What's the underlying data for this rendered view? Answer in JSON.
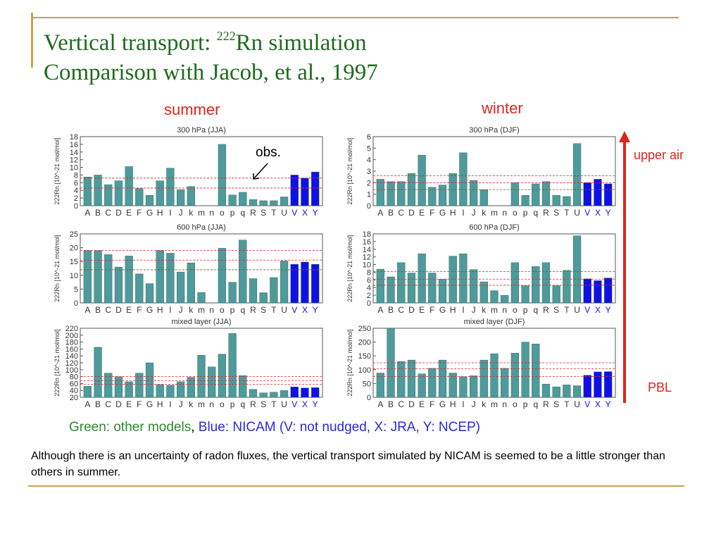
{
  "title": {
    "line1_prefix": "Vertical transport: ",
    "line1_sup": "222",
    "line1_suffix": "Rn simulation",
    "line2": "Comparison with Jacob, et al., 1997"
  },
  "labels": {
    "summer": "summer",
    "winter": "winter",
    "upper_air": "upper air",
    "pbl": "PBL",
    "obs": "obs."
  },
  "legend": {
    "green_text": "Green: other models",
    "separator": ", ",
    "blue_text": "Blue: NICAM (V: not nudged, X: JRA, Y: NCEP)"
  },
  "note": "Although there is an uncertainty of radon fluxes, the vertical transport simulated by NICAM is seemed to be a little stronger than others in summer.",
  "colors": {
    "title": "#1f6a1f",
    "red": "#e0241b",
    "other_models": "#4f9a9a",
    "nicam": "#1010e6",
    "legend_green": "#2c8a2c",
    "legend_blue": "#2a2ad8",
    "gold": "#c8a24a"
  },
  "chart_data": [
    {
      "type": "bar",
      "title": "300 hPa (JJA)",
      "ylabel": "222Rn [10^-21 mol/mol]",
      "ylim": [
        0,
        18
      ],
      "yticks": [
        0,
        2,
        4,
        6,
        8,
        10,
        12,
        14,
        16,
        18
      ],
      "categories": [
        "A",
        "B",
        "C",
        "D",
        "E",
        "F",
        "G",
        "H",
        "I",
        "J",
        "k",
        "m",
        "n",
        "o",
        "p",
        "q",
        "R",
        "S",
        "T",
        "U",
        "V",
        "X",
        "Y"
      ],
      "values": [
        7.5,
        8.0,
        5.5,
        6.5,
        10.2,
        4.5,
        2.7,
        6.5,
        9.8,
        4.2,
        5.0,
        0,
        0,
        16.0,
        2.8,
        3.5,
        1.6,
        1.3,
        1.3,
        2.3,
        8.0,
        7.2,
        8.8
      ],
      "nicam_categories": [
        "V",
        "X",
        "Y"
      ],
      "obs_lines": [
        7.2,
        4.6
      ]
    },
    {
      "type": "bar",
      "title": "300 hPa (DJF)",
      "ylabel": "222Rn [10^-21 mol/mol]",
      "ylim": [
        0,
        6
      ],
      "yticks": [
        0,
        1,
        2,
        3,
        4,
        5,
        6
      ],
      "categories": [
        "A",
        "B",
        "C",
        "D",
        "E",
        "F",
        "G",
        "H",
        "I",
        "J",
        "k",
        "m",
        "n",
        "o",
        "p",
        "q",
        "R",
        "S",
        "T",
        "U",
        "V",
        "X",
        "Y"
      ],
      "values": [
        2.3,
        2.1,
        2.1,
        2.8,
        4.4,
        1.6,
        1.8,
        2.8,
        4.6,
        2.2,
        1.4,
        0,
        0,
        2.0,
        0.9,
        1.9,
        2.1,
        0.9,
        0.8,
        5.4,
        2.0,
        2.3,
        1.9
      ],
      "nicam_categories": [
        "V",
        "X",
        "Y"
      ],
      "obs_lines": [
        2.6,
        2.0,
        1.4
      ]
    },
    {
      "type": "bar",
      "title": "600 hPa (JJA)",
      "ylabel": "222Rn [10^-21 mol/mol]",
      "ylim": [
        0,
        25
      ],
      "yticks": [
        0,
        5,
        10,
        15,
        20,
        25
      ],
      "categories": [
        "A",
        "B",
        "C",
        "D",
        "E",
        "F",
        "G",
        "H",
        "I",
        "J",
        "k",
        "m",
        "n",
        "o",
        "p",
        "q",
        "R",
        "S",
        "T",
        "U",
        "V",
        "X",
        "Y"
      ],
      "values": [
        19.0,
        19.0,
        17.5,
        13.0,
        17.0,
        10.5,
        7.0,
        19.0,
        18.0,
        11.2,
        14.5,
        3.8,
        0,
        19.8,
        7.5,
        22.8,
        8.8,
        3.7,
        9.2,
        15.2,
        14.0,
        14.8,
        14.0
      ],
      "nicam_categories": [
        "V",
        "X",
        "Y"
      ],
      "obs_lines": [
        19.0,
        15.5,
        12.0
      ]
    },
    {
      "type": "bar",
      "title": "600 hPa (DJF)",
      "ylabel": "222Rn [10^-21 mol/mol]",
      "ylim": [
        0,
        18
      ],
      "yticks": [
        0,
        2,
        4,
        6,
        8,
        10,
        12,
        14,
        16,
        18
      ],
      "categories": [
        "A",
        "B",
        "C",
        "D",
        "E",
        "F",
        "G",
        "H",
        "I",
        "J",
        "k",
        "m",
        "n",
        "o",
        "p",
        "q",
        "R",
        "S",
        "T",
        "U",
        "V",
        "X",
        "Y"
      ],
      "values": [
        8.8,
        6.8,
        10.5,
        7.8,
        12.8,
        7.8,
        6.2,
        12.2,
        12.8,
        8.7,
        5.5,
        3.2,
        2.0,
        10.5,
        4.5,
        9.5,
        10.5,
        4.5,
        8.5,
        17.5,
        6.3,
        5.8,
        6.5
      ],
      "nicam_categories": [
        "V",
        "X",
        "Y"
      ],
      "obs_lines": [
        8.2,
        6.2,
        4.6
      ]
    },
    {
      "type": "bar",
      "title": "mixed layer (JJA)",
      "ylabel": "222Rn [10^-21 mol/mol]",
      "ylim": [
        20,
        220
      ],
      "yticks": [
        20,
        40,
        60,
        80,
        100,
        120,
        140,
        160,
        180,
        200,
        220
      ],
      "categories": [
        "A",
        "B",
        "C",
        "D",
        "E",
        "F",
        "G",
        "H",
        "I",
        "J",
        "k",
        "m",
        "n",
        "o",
        "p",
        "q",
        "R",
        "S",
        "T",
        "U",
        "V",
        "X",
        "Y"
      ],
      "values": [
        52,
        165,
        90,
        80,
        65,
        90,
        120,
        57,
        55,
        65,
        78,
        142,
        108,
        145,
        205,
        83,
        43,
        33,
        35,
        40,
        50,
        47,
        48
      ],
      "nicam_categories": [
        "V",
        "X",
        "Y"
      ],
      "obs_lines": [
        80,
        68,
        58
      ]
    },
    {
      "type": "bar",
      "title": "mixed layer (DJF)",
      "ylabel": "222Rn [10^-21 mol/mol]",
      "ylim": [
        0,
        250
      ],
      "yticks": [
        0,
        50,
        100,
        150,
        200,
        250
      ],
      "categories": [
        "A",
        "B",
        "C",
        "D",
        "E",
        "F",
        "G",
        "H",
        "I",
        "J",
        "k",
        "m",
        "n",
        "o",
        "p",
        "q",
        "R",
        "S",
        "T",
        "U",
        "V",
        "X",
        "Y"
      ],
      "values": [
        88,
        250,
        130,
        135,
        85,
        105,
        135,
        88,
        75,
        78,
        135,
        158,
        105,
        160,
        200,
        193,
        48,
        38,
        45,
        42,
        80,
        92,
        93
      ],
      "nicam_categories": [
        "V",
        "X",
        "Y"
      ],
      "obs_lines": [
        125,
        103,
        75
      ]
    }
  ]
}
